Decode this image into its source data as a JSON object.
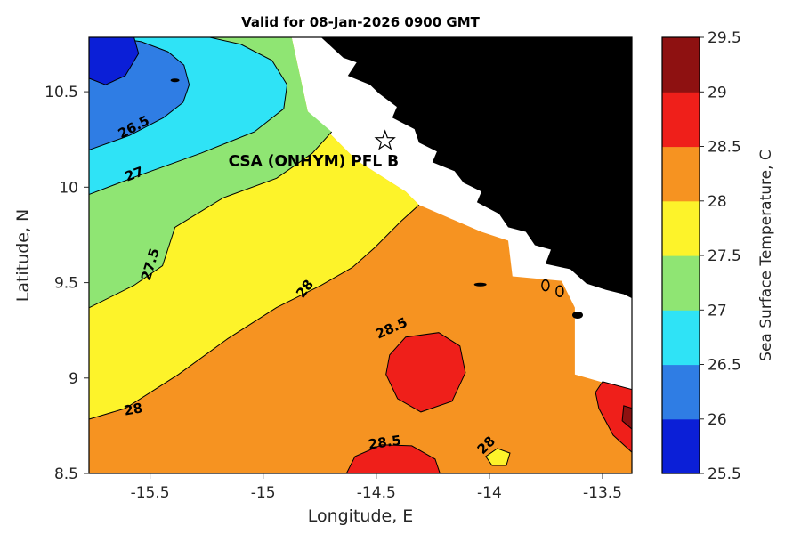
{
  "title": "Valid for 08-Jan-2026 0900 GMT",
  "axes": {
    "xlabel": "Longitude, E",
    "ylabel": "Latitude, N",
    "xlim": [
      -15.77,
      -13.37
    ],
    "ylim": [
      8.5,
      10.785
    ],
    "x_tick_values": [
      -15.5,
      -15,
      -14.5,
      -14,
      -13.5
    ],
    "x_tick_labels": [
      "-15.5",
      "-15",
      "-14.5",
      "-14",
      "-13.5"
    ],
    "y_tick_values": [
      8.5,
      9,
      9.5,
      10,
      10.5
    ],
    "y_tick_labels": [
      "8.5",
      "9",
      "9.5",
      "10",
      "10.5"
    ]
  },
  "colorbar": {
    "label": "Sea Surface Temperature, C",
    "range": [
      25.5,
      29.5
    ],
    "tick_values": [
      25.5,
      26,
      26.5,
      27,
      27.5,
      28,
      28.5,
      29,
      29.5
    ],
    "tick_labels": [
      "25.5",
      "26",
      "26.5",
      "27",
      "27.5",
      "28",
      "28.5",
      "29",
      "29.5"
    ],
    "colors": [
      "#0b1fd7",
      "#2f7de4",
      "#2fe3f6",
      "#8fe573",
      "#fdf32a",
      "#f69321",
      "#ef1f1a",
      "#8e1111"
    ]
  },
  "chart_data": {
    "type": "heatmap",
    "subtype": "filled-contour-map",
    "variable": "Sea Surface Temperature, C",
    "contour_levels": [
      26,
      26.5,
      27,
      27.5,
      28,
      28.5,
      29
    ],
    "land_color": "#000000",
    "no_data_color": "#ffffff",
    "regions": [
      {
        "band": "28-28.5",
        "color_index": 5,
        "edge": 0,
        "points": [
          [
            -15.768,
            10.785
          ],
          [
            -14.874,
            10.785
          ],
          [
            -14.803,
            10.397
          ],
          [
            -14.587,
            10.14
          ],
          [
            -14.37,
            9.977
          ],
          [
            -14.311,
            9.907
          ],
          [
            -14.035,
            9.766
          ],
          [
            -13.917,
            9.72
          ],
          [
            -13.898,
            9.533
          ],
          [
            -13.681,
            9.509
          ],
          [
            -13.622,
            9.369
          ],
          [
            -13.622,
            9.019
          ],
          [
            -13.484,
            8.972
          ],
          [
            -13.366,
            8.879
          ],
          [
            -13.366,
            8.495
          ],
          [
            -15.768,
            8.495
          ]
        ]
      },
      {
        "band": "27.5-28",
        "color_index": 4,
        "edge": 10,
        "points": [
          [
            -15.768,
            8.785
          ],
          [
            -15.61,
            8.841
          ],
          [
            -15.374,
            9.019
          ],
          [
            -15.157,
            9.206
          ],
          [
            -14.941,
            9.369
          ],
          [
            -14.744,
            9.486
          ],
          [
            -14.606,
            9.579
          ],
          [
            -14.508,
            9.682
          ],
          [
            -14.39,
            9.822
          ],
          [
            -14.311,
            9.907
          ],
          [
            -14.37,
            9.977
          ],
          [
            -14.587,
            10.14
          ],
          [
            -14.803,
            10.397
          ],
          [
            -14.874,
            10.785
          ],
          [
            -15.768,
            10.785
          ]
        ]
      },
      {
        "band": "27-27.5",
        "color_index": 3,
        "edge": 8,
        "points": [
          [
            -15.768,
            9.369
          ],
          [
            -15.571,
            9.486
          ],
          [
            -15.445,
            9.589
          ],
          [
            -15.39,
            9.79
          ],
          [
            -15.177,
            9.944
          ],
          [
            -14.941,
            10.047
          ],
          [
            -14.783,
            10.178
          ],
          [
            -14.697,
            10.29
          ],
          [
            -14.803,
            10.397
          ],
          [
            -14.874,
            10.785
          ],
          [
            -15.768,
            10.785
          ]
        ]
      },
      {
        "band": "26.5-27",
        "color_index": 2,
        "edge": 9,
        "points": [
          [
            -15.768,
            9.963
          ],
          [
            -15.551,
            10.061
          ],
          [
            -15.276,
            10.178
          ],
          [
            -15.039,
            10.29
          ],
          [
            -14.909,
            10.411
          ],
          [
            -14.894,
            10.537
          ],
          [
            -14.961,
            10.664
          ],
          [
            -15.098,
            10.748
          ],
          [
            -15.236,
            10.785
          ],
          [
            -15.768,
            10.785
          ]
        ]
      },
      {
        "band": "26-26.5",
        "color_index": 1,
        "edge": 9,
        "points": [
          [
            -15.768,
            10.196
          ],
          [
            -15.591,
            10.271
          ],
          [
            -15.441,
            10.364
          ],
          [
            -15.354,
            10.444
          ],
          [
            -15.327,
            10.537
          ],
          [
            -15.35,
            10.64
          ],
          [
            -15.421,
            10.71
          ],
          [
            -15.539,
            10.762
          ],
          [
            -15.669,
            10.785
          ],
          [
            -15.768,
            10.785
          ]
        ]
      },
      {
        "band": "25.5-26",
        "color_index": 0,
        "edge": 5,
        "points": [
          [
            -15.571,
            10.785
          ],
          [
            -15.551,
            10.701
          ],
          [
            -15.61,
            10.584
          ],
          [
            -15.697,
            10.537
          ],
          [
            -15.768,
            10.57
          ],
          [
            -15.768,
            10.785
          ]
        ]
      },
      {
        "band": "28.5-29",
        "color_index": 6,
        "edge": -1,
        "points": [
          [
            -14.441,
            9.121
          ],
          [
            -14.37,
            9.215
          ],
          [
            -14.224,
            9.238
          ],
          [
            -14.13,
            9.168
          ],
          [
            -14.106,
            9.028
          ],
          [
            -14.165,
            8.878
          ],
          [
            -14.303,
            8.822
          ],
          [
            -14.406,
            8.892
          ],
          [
            -14.457,
            9.019
          ]
        ]
      },
      {
        "band": "28.5-29",
        "color_index": 6,
        "edge": -1,
        "points": [
          [
            -14.634,
            8.495
          ],
          [
            -14.594,
            8.589
          ],
          [
            -14.476,
            8.65
          ],
          [
            -14.343,
            8.645
          ],
          [
            -14.24,
            8.575
          ],
          [
            -14.217,
            8.495
          ]
        ]
      },
      {
        "band": "28.5-29",
        "color_index": 6,
        "edge": -1,
        "points": [
          [
            -13.5,
            8.981
          ],
          [
            -13.366,
            8.939
          ],
          [
            -13.366,
            8.607
          ],
          [
            -13.453,
            8.701
          ],
          [
            -13.516,
            8.841
          ],
          [
            -13.531,
            8.925
          ]
        ]
      },
      {
        "band": "29-29.5",
        "color_index": 7,
        "edge": -1,
        "points": [
          [
            -13.406,
            8.855
          ],
          [
            -13.366,
            8.841
          ],
          [
            -13.366,
            8.729
          ],
          [
            -13.413,
            8.776
          ]
        ]
      },
      {
        "band": "27.5-28",
        "color_index": 4,
        "edge": -1,
        "points": [
          [
            -14.016,
            8.589
          ],
          [
            -13.965,
            8.631
          ],
          [
            -13.909,
            8.607
          ],
          [
            -13.925,
            8.542
          ],
          [
            -13.988,
            8.542
          ]
        ]
      }
    ],
    "land": {
      "points": [
        [
          -14.744,
          10.785
        ],
        [
          -14.646,
          10.678
        ],
        [
          -14.587,
          10.654
        ],
        [
          -14.626,
          10.584
        ],
        [
          -14.528,
          10.537
        ],
        [
          -14.488,
          10.491
        ],
        [
          -14.409,
          10.421
        ],
        [
          -14.429,
          10.364
        ],
        [
          -14.331,
          10.304
        ],
        [
          -14.311,
          10.234
        ],
        [
          -14.232,
          10.187
        ],
        [
          -14.252,
          10.131
        ],
        [
          -14.154,
          10.084
        ],
        [
          -14.114,
          10.023
        ],
        [
          -14.035,
          9.977
        ],
        [
          -14.055,
          9.921
        ],
        [
          -13.957,
          9.86
        ],
        [
          -13.917,
          9.79
        ],
        [
          -13.839,
          9.766
        ],
        [
          -13.799,
          9.696
        ],
        [
          -13.728,
          9.673
        ],
        [
          -13.752,
          9.598
        ],
        [
          -13.642,
          9.57
        ],
        [
          -13.571,
          9.495
        ],
        [
          -13.484,
          9.462
        ],
        [
          -13.406,
          9.439
        ],
        [
          -13.366,
          9.416
        ],
        [
          -13.366,
          10.785
        ]
      ]
    },
    "islands": [
      {
        "lon": -14.04,
        "lat": 9.49,
        "rx": 7,
        "ry": 2,
        "stroke": false
      },
      {
        "lon": -13.752,
        "lat": 9.486,
        "rx": 4,
        "ry": 6,
        "stroke": true
      },
      {
        "lon": -13.689,
        "lat": 9.455,
        "rx": 4,
        "ry": 6,
        "stroke": true
      },
      {
        "lon": -13.61,
        "lat": 9.33,
        "rx": 6,
        "ry": 4,
        "stroke": false
      },
      {
        "lon": -15.39,
        "lat": 10.56,
        "rx": 5,
        "ry": 2,
        "stroke": false
      }
    ],
    "contour_labels": [
      {
        "text": "26.5",
        "lon": -15.563,
        "lat": 10.294,
        "rot": -28
      },
      {
        "text": "27",
        "lon": -15.563,
        "lat": 10.047,
        "rot": -20
      },
      {
        "text": "27.5",
        "lon": -15.48,
        "lat": 9.589,
        "rot": -73
      },
      {
        "text": "28",
        "lon": -14.8,
        "lat": 9.453,
        "rot": -52
      },
      {
        "text": "28.5",
        "lon": -14.425,
        "lat": 9.24,
        "rot": -24
      },
      {
        "text": "28",
        "lon": -15.571,
        "lat": 8.813,
        "rot": -10
      },
      {
        "text": "28.5",
        "lon": -14.46,
        "lat": 8.64,
        "rot": -8
      },
      {
        "text": "28",
        "lon": -14.0,
        "lat": 8.632,
        "rot": -45
      }
    ],
    "station_marker": {
      "shape": "star",
      "lon": -14.461,
      "lat": 10.243
    },
    "annotation": {
      "text": "CSA (ONHYM) PFL B",
      "lon": -15.154,
      "lat": 10.14
    }
  }
}
